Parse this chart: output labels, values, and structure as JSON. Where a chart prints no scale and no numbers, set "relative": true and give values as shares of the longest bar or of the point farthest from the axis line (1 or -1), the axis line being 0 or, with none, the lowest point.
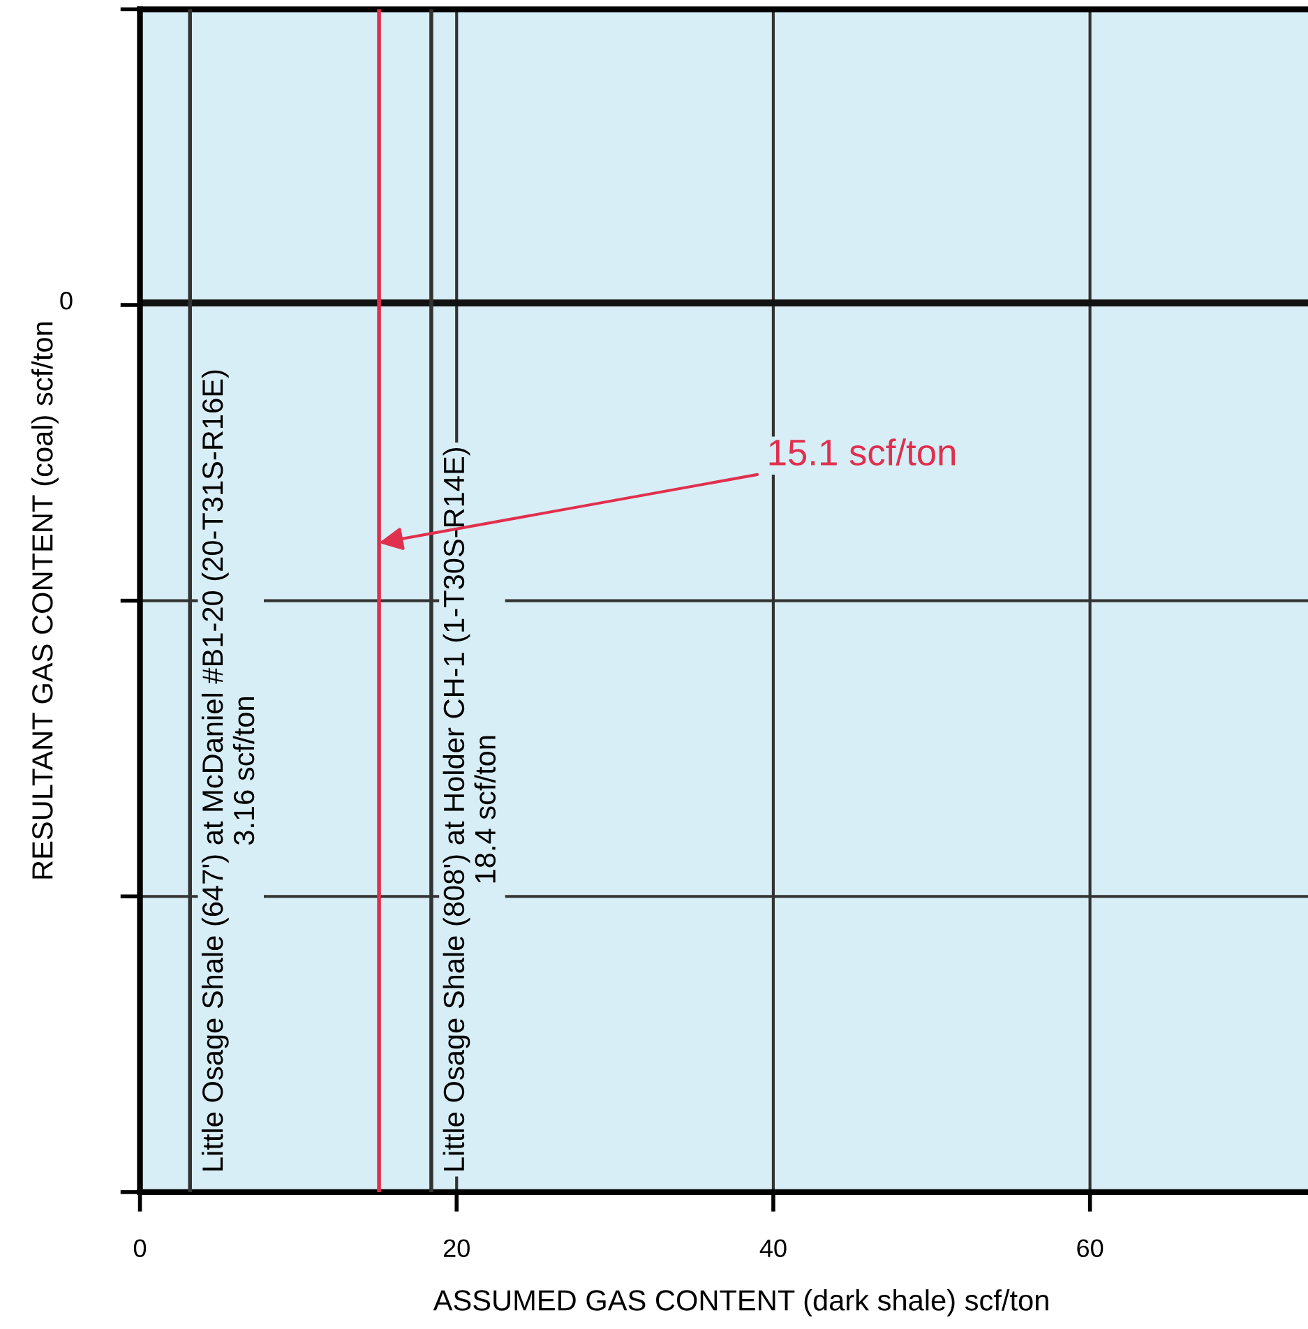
{
  "chart_data": {
    "type": "line",
    "relative": true,
    "xlabel": "ASSUMED GAS CONTENT (dark shale) scf/ton",
    "ylabel": "RESULTANT GAS CONTENT (coal) scf/ton",
    "xlim": [
      0,
      76
    ],
    "xticks": [
      0,
      20,
      40,
      60
    ],
    "grid": true,
    "series": [
      {
        "name": "Little Osage Shale (647') at McDaniel #B1-20 (20-T31S-R16E)\n3.16 scf/ton",
        "color": "#333333",
        "x": [
          3.16,
          3.16
        ],
        "values": [
          -1,
          0.33
        ]
      },
      {
        "name": "Little Osage Shale (808') at Holder CH-1 (1-T30S-R14E)\n18.4 scf/ton",
        "color": "#333333",
        "x": [
          18.4,
          18.4
        ],
        "values": [
          -1,
          0.33
        ]
      },
      {
        "color": "#e0304e",
        "x": [
          15.1,
          15.1
        ],
        "values": [
          -1,
          0.33
        ]
      }
    ],
    "annotations": [
      "0",
      {
        "text": "15.1 scf/ton",
        "x": 15.1,
        "y": -0.27
      }
    ]
  }
}
